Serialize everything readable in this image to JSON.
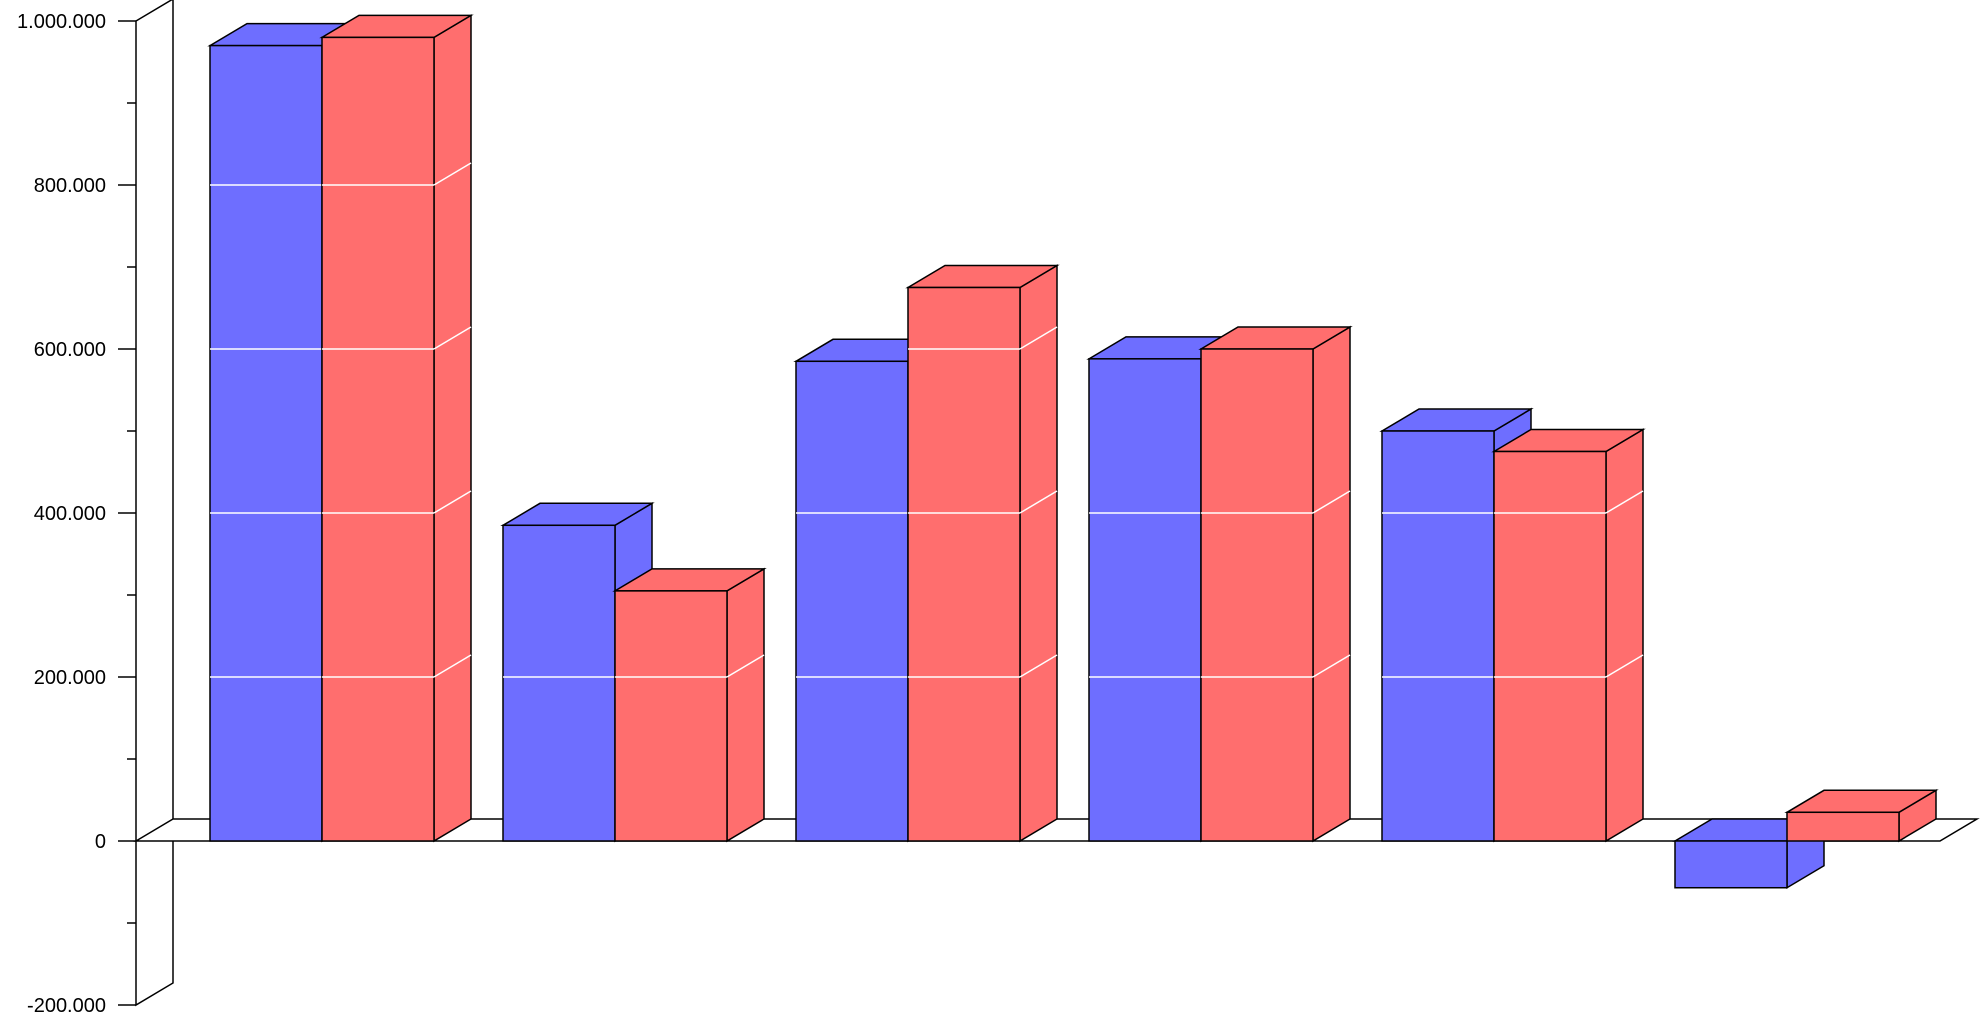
{
  "chart_data": {
    "type": "bar",
    "categories": [
      "",
      "",
      "",
      "",
      "",
      ""
    ],
    "series": [
      {
        "values": [
          970000,
          385000,
          585000,
          588000,
          500000,
          -57000
        ]
      },
      {
        "values": [
          980000,
          305000,
          675000,
          600000,
          475000,
          35000
        ]
      }
    ],
    "ylim": [
      -200000,
      1000000
    ],
    "y_ticks": [
      -200000,
      0,
      200000,
      400000,
      600000,
      800000,
      1000000
    ],
    "y_tick_labels": [
      "-200.000",
      "0",
      "200.000",
      "400.000",
      "600.000",
      "800.000",
      "1.000.000"
    ],
    "grid": true,
    "legend": "none",
    "colors": {
      "series_0": "#6e6eff",
      "series_1": "#ff6e6e",
      "outline": "#000000",
      "gridline": "#ffffff"
    }
  }
}
